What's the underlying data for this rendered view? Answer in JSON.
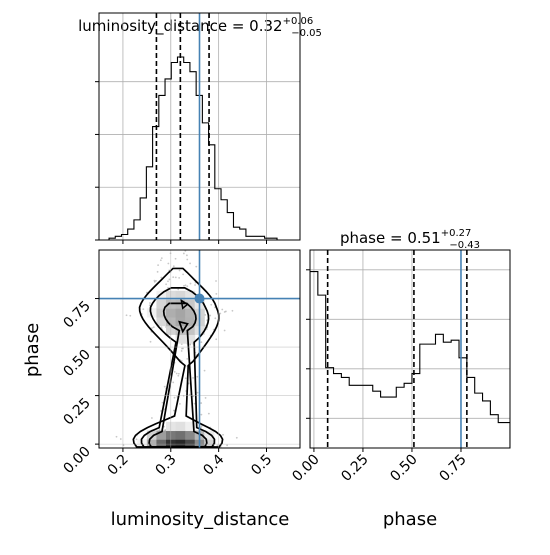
{
  "chart_data": {
    "type": "corner",
    "parameters": [
      "luminosity_distance",
      "phase"
    ],
    "truths": {
      "luminosity_distance": 0.36,
      "phase": 0.75
    },
    "panels": {
      "luminosity_distance": {
        "type": "histogram",
        "title": {
          "main": "luminosity_distance = 0.32",
          "sup": "+0.06",
          "sub": "−0.05"
        },
        "x_ticks": [
          0.2,
          0.3,
          0.4,
          0.5
        ],
        "x_range": [
          0.15,
          0.57
        ],
        "quantiles": [
          0.27,
          0.32,
          0.38
        ],
        "truth": 0.36,
        "bin_edges": [
          0.145,
          0.158,
          0.171,
          0.184,
          0.197,
          0.21,
          0.223,
          0.236,
          0.249,
          0.262,
          0.275,
          0.288,
          0.301,
          0.314,
          0.327,
          0.34,
          0.353,
          0.366,
          0.379,
          0.392,
          0.405,
          0.418,
          0.431,
          0.444,
          0.457,
          0.47,
          0.483,
          0.496,
          0.509,
          0.522,
          0.535,
          0.548,
          0.565
        ],
        "counts": [
          0.0,
          0.0,
          0.01,
          0.02,
          0.03,
          0.06,
          0.11,
          0.23,
          0.4,
          0.62,
          0.79,
          0.88,
          0.97,
          1.0,
          0.97,
          0.92,
          0.79,
          0.64,
          0.52,
          0.28,
          0.22,
          0.15,
          0.07,
          0.06,
          0.02,
          0.02,
          0.02,
          0.01,
          0.01,
          0.0,
          0.0,
          0.0
        ]
      },
      "phase": {
        "type": "histogram",
        "title": {
          "main": "phase = 0.51",
          "sup": "+0.27",
          "sub": "−0.43"
        },
        "x_ticks": [
          0.0,
          0.25,
          0.5,
          0.75
        ],
        "x_tick_labels": [
          "0.00",
          "0.25",
          "0.50",
          "0.75"
        ],
        "x_range": [
          -0.02,
          1.0
        ],
        "quantiles": [
          0.07,
          0.51,
          0.78
        ],
        "truth": 0.75,
        "bin_edges": [
          -0.02,
          0.02,
          0.06,
          0.1,
          0.14,
          0.18,
          0.22,
          0.26,
          0.3,
          0.34,
          0.38,
          0.42,
          0.46,
          0.5,
          0.54,
          0.58,
          0.62,
          0.66,
          0.7,
          0.74,
          0.78,
          0.82,
          0.86,
          0.9,
          0.94,
          1.0
        ],
        "counts": [
          0.9,
          0.78,
          0.41,
          0.38,
          0.36,
          0.32,
          0.32,
          0.32,
          0.29,
          0.26,
          0.26,
          0.31,
          0.33,
          0.38,
          0.53,
          0.53,
          0.58,
          0.54,
          0.55,
          0.46,
          0.36,
          0.28,
          0.24,
          0.17,
          0.13
        ]
      },
      "joint": {
        "type": "density_contour",
        "x_param": "luminosity_distance",
        "y_param": "phase",
        "x_range": [
          0.15,
          0.57
        ],
        "y_range": [
          -0.02,
          1.0
        ],
        "x_ticks": [
          0.2,
          0.3,
          0.4,
          0.5
        ],
        "y_ticks": [
          0.0,
          0.25,
          0.5,
          0.75
        ],
        "y_tick_labels": [
          "0.00",
          "0.25",
          "0.50",
          "0.75"
        ],
        "truth": {
          "x": 0.36,
          "y": 0.75
        },
        "contour_levels": [
          0.5,
          1,
          1.5,
          2,
          3
        ]
      }
    },
    "xlabels": [
      "luminosity_distance",
      "phase"
    ],
    "ylabel": "phase",
    "truth_color": "#4682b4",
    "grid": true
  }
}
